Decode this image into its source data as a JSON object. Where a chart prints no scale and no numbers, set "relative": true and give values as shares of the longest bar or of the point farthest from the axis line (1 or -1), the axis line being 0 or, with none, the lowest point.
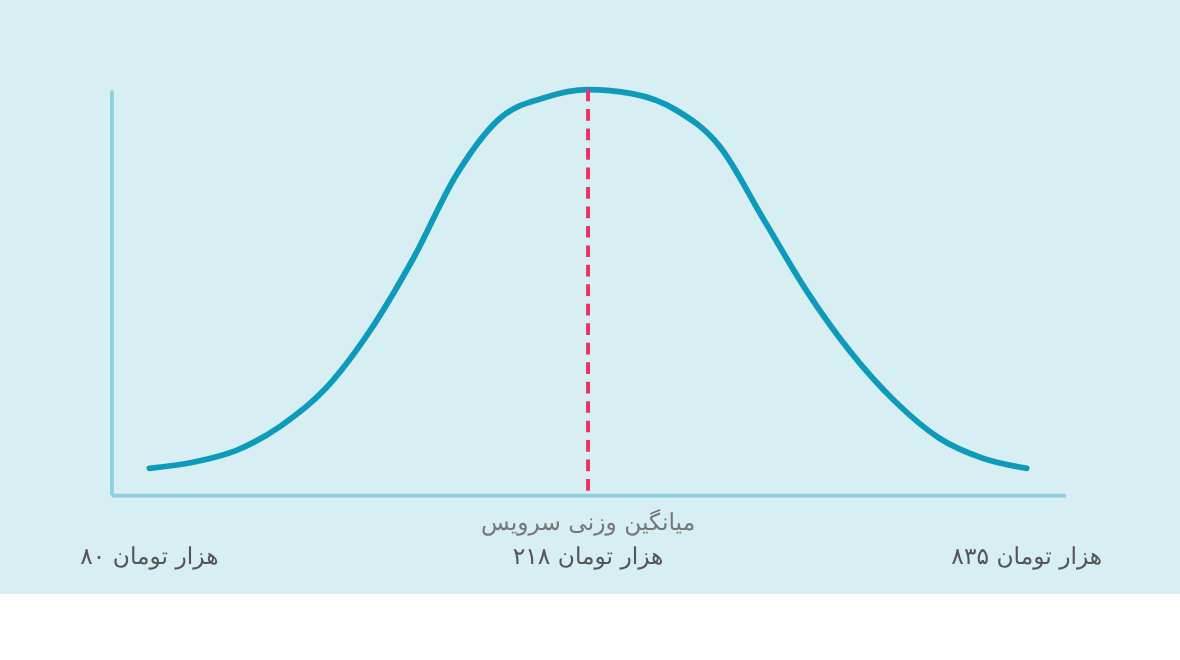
{
  "chart_data": {
    "type": "line",
    "relative": true,
    "tick_labels": "x",
    "grid": false,
    "marker": "none",
    "line_style": "solid",
    "categories": [
      "۸۰ هزار تومان",
      null,
      null,
      null,
      null,
      null,
      null,
      null,
      null,
      null,
      "۲۱۸ هزار تومان",
      null,
      null,
      null,
      null,
      null,
      null,
      null,
      null,
      null,
      "۸۳۵ هزار تومان"
    ],
    "series": [
      {
        "color": "#0e9bbb",
        "values": [
          0.065,
          0.08,
          0.11,
          0.17,
          0.26,
          0.4,
          0.58,
          0.79,
          0.93,
          0.98,
          1,
          0.99,
          0.95,
          0.86,
          0.68,
          0.5,
          0.35,
          0.23,
          0.14,
          0.09,
          0.065
        ]
      }
    ],
    "ref_lines": [
      {
        "axis": "x",
        "value": "۲۱۸ هزار تومان",
        "label": "میانگین وزنی سرویس",
        "color": "#ef2f5f",
        "line_style": "dashed"
      }
    ]
  }
}
